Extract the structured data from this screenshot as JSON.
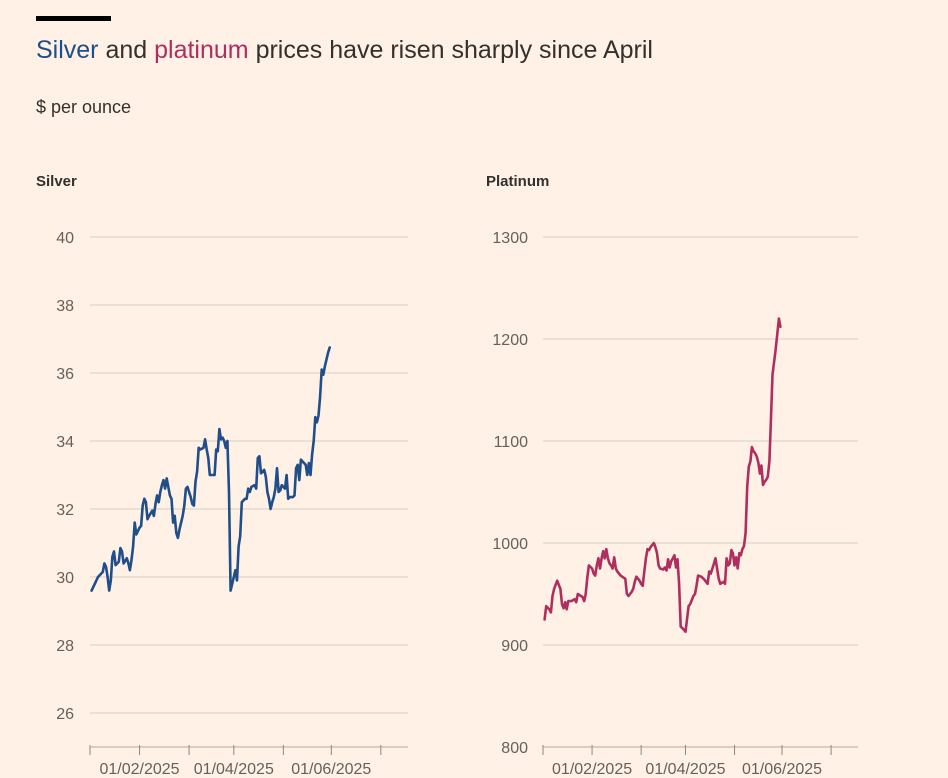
{
  "header": {
    "title_part1": "Silver",
    "title_part2": " and ",
    "title_part3": "platinum",
    "title_part4": " prices have risen sharply since April",
    "subtitle": "$ per ounce"
  },
  "colors": {
    "background": "#fff1e5",
    "silver": "#1f4e89",
    "platinum": "#b02e5e",
    "grid": "#d9cdc2",
    "text": "#33302e",
    "axis_text": "#66605c"
  },
  "chart_data": [
    {
      "type": "line",
      "title": "Silver",
      "series_color": "#1f4e89",
      "ylim": [
        25,
        41
      ],
      "yticks": [
        26,
        28,
        30,
        32,
        34,
        36,
        38,
        40
      ],
      "xlim": [
        "2024-12-01",
        "2025-06-18"
      ],
      "xticks": [
        "2024-12-01",
        "2025-01-01",
        "2025-02-01",
        "2025-03-01",
        "2025-04-01",
        "2025-05-01",
        "2025-06-01"
      ],
      "xtick_labels": [
        "",
        "01/02/2025",
        "",
        "01/04/2025",
        "",
        "01/06/2025",
        ""
      ],
      "grid": "horizontal",
      "points": [
        [
          "2024-12-02",
          29.6
        ],
        [
          "2024-12-04",
          29.8
        ],
        [
          "2024-12-06",
          30.0
        ],
        [
          "2024-12-08",
          30.1
        ],
        [
          "2024-12-09",
          30.15
        ],
        [
          "2024-12-10",
          30.4
        ],
        [
          "2024-12-11",
          30.3
        ],
        [
          "2024-12-12",
          30.0
        ],
        [
          "2024-12-13",
          29.6
        ],
        [
          "2024-12-14",
          29.9
        ],
        [
          "2024-12-15",
          30.6
        ],
        [
          "2024-12-16",
          30.75
        ],
        [
          "2024-12-17",
          30.35
        ],
        [
          "2024-12-19",
          30.45
        ],
        [
          "2024-12-20",
          30.85
        ],
        [
          "2024-12-21",
          30.75
        ],
        [
          "2024-12-22",
          30.4
        ],
        [
          "2024-12-24",
          30.55
        ],
        [
          "2024-12-25",
          30.4
        ],
        [
          "2024-12-26",
          30.2
        ],
        [
          "2024-12-27",
          30.5
        ],
        [
          "2024-12-28",
          30.9
        ],
        [
          "2024-12-29",
          31.6
        ],
        [
          "2024-12-30",
          31.25
        ],
        [
          "2025-01-01",
          31.45
        ],
        [
          "2025-01-02",
          31.5
        ],
        [
          "2025-01-03",
          32.1
        ],
        [
          "2025-01-04",
          32.3
        ],
        [
          "2025-01-05",
          32.2
        ],
        [
          "2025-01-06",
          31.7
        ],
        [
          "2025-01-07",
          31.8
        ],
        [
          "2025-01-09",
          31.95
        ],
        [
          "2025-01-10",
          31.8
        ],
        [
          "2025-01-11",
          32.15
        ],
        [
          "2025-01-12",
          32.4
        ],
        [
          "2025-01-13",
          32.2
        ],
        [
          "2025-01-14",
          32.5
        ],
        [
          "2025-01-15",
          32.7
        ],
        [
          "2025-01-16",
          32.85
        ],
        [
          "2025-01-17",
          32.6
        ],
        [
          "2025-01-18",
          32.9
        ],
        [
          "2025-01-19",
          32.65
        ],
        [
          "2025-01-20",
          32.4
        ],
        [
          "2025-01-21",
          32.3
        ],
        [
          "2025-01-22",
          31.6
        ],
        [
          "2025-01-23",
          31.8
        ],
        [
          "2025-01-24",
          31.3
        ],
        [
          "2025-01-25",
          31.15
        ],
        [
          "2025-01-26",
          31.4
        ],
        [
          "2025-01-27",
          31.6
        ],
        [
          "2025-01-28",
          31.8
        ],
        [
          "2025-01-29",
          32.1
        ],
        [
          "2025-01-30",
          32.6
        ],
        [
          "2025-01-31",
          32.65
        ],
        [
          "2025-02-01",
          32.5
        ],
        [
          "2025-02-02",
          32.35
        ],
        [
          "2025-02-03",
          32.15
        ],
        [
          "2025-02-04",
          32.1
        ],
        [
          "2025-02-05",
          32.8
        ],
        [
          "2025-02-06",
          33.1
        ],
        [
          "2025-02-07",
          33.8
        ],
        [
          "2025-02-08",
          33.75
        ],
        [
          "2025-02-10",
          33.8
        ],
        [
          "2025-02-11",
          34.05
        ],
        [
          "2025-02-12",
          33.75
        ],
        [
          "2025-02-13",
          33.5
        ],
        [
          "2025-02-14",
          33.0
        ],
        [
          "2025-02-15",
          33.0
        ],
        [
          "2025-02-16",
          33.0
        ],
        [
          "2025-02-17",
          33.0
        ],
        [
          "2025-02-18",
          33.75
        ],
        [
          "2025-02-19",
          33.7
        ],
        [
          "2025-02-20",
          34.35
        ],
        [
          "2025-02-21",
          34.05
        ],
        [
          "2025-02-22",
          34.1
        ],
        [
          "2025-02-23",
          34.0
        ],
        [
          "2025-02-24",
          33.8
        ],
        [
          "2025-02-25",
          34.0
        ],
        [
          "2025-02-26",
          32.5
        ],
        [
          "2025-02-27",
          29.6
        ],
        [
          "2025-02-28",
          29.8
        ],
        [
          "2025-03-01",
          30.0
        ],
        [
          "2025-03-02",
          30.2
        ],
        [
          "2025-03-03",
          29.9
        ],
        [
          "2025-03-04",
          30.9
        ],
        [
          "2025-03-05",
          31.2
        ],
        [
          "2025-03-06",
          32.2
        ],
        [
          "2025-03-08",
          32.3
        ],
        [
          "2025-03-09",
          32.3
        ],
        [
          "2025-03-10",
          32.6
        ],
        [
          "2025-03-11",
          32.5
        ],
        [
          "2025-03-12",
          32.65
        ],
        [
          "2025-03-14",
          32.7
        ],
        [
          "2025-03-15",
          32.6
        ],
        [
          "2025-03-16",
          33.5
        ],
        [
          "2025-03-17",
          33.55
        ],
        [
          "2025-03-18",
          33.05
        ],
        [
          "2025-03-20",
          33.15
        ],
        [
          "2025-03-21",
          32.95
        ],
        [
          "2025-03-22",
          32.5
        ],
        [
          "2025-03-23",
          32.3
        ],
        [
          "2025-03-24",
          32.0
        ],
        [
          "2025-03-25",
          32.2
        ],
        [
          "2025-03-26",
          32.35
        ],
        [
          "2025-03-27",
          32.6
        ],
        [
          "2025-03-28",
          33.2
        ],
        [
          "2025-03-29",
          32.5
        ],
        [
          "2025-03-30",
          32.55
        ],
        [
          "2025-03-31",
          32.7
        ],
        [
          "2025-04-01",
          32.65
        ],
        [
          "2025-04-02",
          32.6
        ],
        [
          "2025-04-03",
          33.0
        ],
        [
          "2025-04-04",
          32.3
        ],
        [
          "2025-04-05",
          32.35
        ],
        [
          "2025-04-06",
          32.35
        ],
        [
          "2025-04-07",
          32.35
        ],
        [
          "2025-04-08",
          32.4
        ],
        [
          "2025-04-09",
          33.2
        ],
        [
          "2025-04-10",
          33.3
        ],
        [
          "2025-04-11",
          32.85
        ],
        [
          "2025-04-12",
          33.45
        ],
        [
          "2025-04-13",
          33.4
        ],
        [
          "2025-04-14",
          33.35
        ],
        [
          "2025-04-15",
          33.3
        ],
        [
          "2025-04-16",
          33.0
        ],
        [
          "2025-04-17",
          33.35
        ],
        [
          "2025-04-18",
          33.0
        ],
        [
          "2025-04-19",
          33.6
        ],
        [
          "2025-04-20",
          34.0
        ],
        [
          "2025-04-21",
          34.7
        ],
        [
          "2025-04-22",
          34.55
        ],
        [
          "2025-04-23",
          34.75
        ],
        [
          "2025-04-24",
          35.3
        ],
        [
          "2025-04-25",
          36.1
        ],
        [
          "2025-04-26",
          35.95
        ],
        [
          "2025-04-27",
          36.2
        ],
        [
          "2025-04-28",
          36.4
        ],
        [
          "2025-04-29",
          36.6
        ],
        [
          "2025-04-30",
          36.75
        ]
      ]
    },
    {
      "type": "line",
      "title": "Platinum",
      "series_color": "#b02e5e",
      "ylim": [
        800,
        1300
      ],
      "yticks": [
        800,
        900,
        1000,
        1100,
        1200,
        1300
      ],
      "xlim": [
        "2024-12-01",
        "2025-06-18"
      ],
      "xticks": [
        "2024-12-01",
        "2025-01-01",
        "2025-02-01",
        "2025-03-01",
        "2025-04-01",
        "2025-05-01",
        "2025-06-01"
      ],
      "xtick_labels": [
        "",
        "01/02/2025",
        "",
        "01/04/2025",
        "",
        "01/06/2025",
        ""
      ],
      "grid": "horizontal",
      "points": [
        [
          "2024-12-02",
          925
        ],
        [
          "2024-12-03",
          938
        ],
        [
          "2024-12-05",
          935
        ],
        [
          "2024-12-06",
          932
        ],
        [
          "2024-12-07",
          948
        ],
        [
          "2024-12-08",
          955
        ],
        [
          "2024-12-10",
          963
        ],
        [
          "2024-12-12",
          955
        ],
        [
          "2024-12-13",
          940
        ],
        [
          "2024-12-14",
          936
        ],
        [
          "2024-12-15",
          942
        ],
        [
          "2024-12-16",
          935
        ],
        [
          "2024-12-17",
          943
        ],
        [
          "2024-12-19",
          943
        ],
        [
          "2024-12-21",
          945
        ],
        [
          "2024-12-22",
          942
        ],
        [
          "2024-12-23",
          950
        ],
        [
          "2024-12-25",
          948
        ],
        [
          "2024-12-26",
          947
        ],
        [
          "2024-12-27",
          943
        ],
        [
          "2024-12-28",
          950
        ],
        [
          "2024-12-29",
          966
        ],
        [
          "2024-12-30",
          978
        ],
        [
          "2025-01-01",
          975
        ],
        [
          "2025-01-02",
          970
        ],
        [
          "2025-01-03",
          968
        ],
        [
          "2025-01-04",
          978
        ],
        [
          "2025-01-05",
          985
        ],
        [
          "2025-01-06",
          975
        ],
        [
          "2025-01-07",
          985
        ],
        [
          "2025-01-08",
          992
        ],
        [
          "2025-01-09",
          985
        ],
        [
          "2025-01-10",
          994
        ],
        [
          "2025-01-11",
          985
        ],
        [
          "2025-01-12",
          980
        ],
        [
          "2025-01-13",
          978
        ],
        [
          "2025-01-14",
          975
        ],
        [
          "2025-01-15",
          986
        ],
        [
          "2025-01-16",
          975
        ],
        [
          "2025-01-17",
          972
        ],
        [
          "2025-01-19",
          968
        ],
        [
          "2025-01-21",
          966
        ],
        [
          "2025-01-22",
          965
        ],
        [
          "2025-01-23",
          950
        ],
        [
          "2025-01-24",
          948
        ],
        [
          "2025-01-26",
          952
        ],
        [
          "2025-01-27",
          955
        ],
        [
          "2025-01-28",
          962
        ],
        [
          "2025-01-29",
          967
        ],
        [
          "2025-01-31",
          963
        ],
        [
          "2025-02-01",
          960
        ],
        [
          "2025-02-02",
          958
        ],
        [
          "2025-02-03",
          972
        ],
        [
          "2025-02-04",
          985
        ],
        [
          "2025-02-05",
          994
        ],
        [
          "2025-02-06",
          993
        ],
        [
          "2025-02-07",
          996
        ],
        [
          "2025-02-08",
          998
        ],
        [
          "2025-02-09",
          1000
        ],
        [
          "2025-02-10",
          996
        ],
        [
          "2025-02-11",
          990
        ],
        [
          "2025-02-12",
          978
        ],
        [
          "2025-02-13",
          975
        ],
        [
          "2025-02-15",
          974
        ],
        [
          "2025-02-16",
          976
        ],
        [
          "2025-02-17",
          973
        ],
        [
          "2025-02-18",
          984
        ],
        [
          "2025-02-19",
          976
        ],
        [
          "2025-02-20",
          982
        ],
        [
          "2025-02-21",
          985
        ],
        [
          "2025-02-22",
          988
        ],
        [
          "2025-02-23",
          976
        ],
        [
          "2025-02-24",
          984
        ],
        [
          "2025-02-25",
          960
        ],
        [
          "2025-02-26",
          918
        ],
        [
          "2025-02-28",
          915
        ],
        [
          "2025-03-01",
          913
        ],
        [
          "2025-03-02",
          925
        ],
        [
          "2025-03-03",
          938
        ],
        [
          "2025-03-04",
          940
        ],
        [
          "2025-03-05",
          944
        ],
        [
          "2025-03-06",
          948
        ],
        [
          "2025-03-07",
          950
        ],
        [
          "2025-03-08",
          958
        ],
        [
          "2025-03-09",
          968
        ],
        [
          "2025-03-11",
          967
        ],
        [
          "2025-03-13",
          964
        ],
        [
          "2025-03-14",
          962
        ],
        [
          "2025-03-15",
          960
        ],
        [
          "2025-03-16",
          972
        ],
        [
          "2025-03-17",
          970
        ],
        [
          "2025-03-18",
          975
        ],
        [
          "2025-03-19",
          980
        ],
        [
          "2025-03-20",
          985
        ],
        [
          "2025-03-21",
          975
        ],
        [
          "2025-03-22",
          965
        ],
        [
          "2025-03-23",
          960
        ],
        [
          "2025-03-25",
          962
        ],
        [
          "2025-03-26",
          960
        ],
        [
          "2025-03-27",
          985
        ],
        [
          "2025-03-28",
          978
        ],
        [
          "2025-03-29",
          980
        ],
        [
          "2025-03-30",
          993
        ],
        [
          "2025-03-31",
          990
        ],
        [
          "2025-04-01",
          978
        ],
        [
          "2025-04-02",
          986
        ],
        [
          "2025-04-03",
          975
        ],
        [
          "2025-04-04",
          990
        ],
        [
          "2025-04-05",
          988
        ],
        [
          "2025-04-06",
          994
        ],
        [
          "2025-04-07",
          997
        ],
        [
          "2025-04-08",
          1010
        ],
        [
          "2025-04-09",
          1055
        ],
        [
          "2025-04-10",
          1075
        ],
        [
          "2025-04-11",
          1080
        ],
        [
          "2025-04-12",
          1094
        ],
        [
          "2025-04-13",
          1090
        ],
        [
          "2025-04-14",
          1088
        ],
        [
          "2025-04-15",
          1085
        ],
        [
          "2025-04-16",
          1079
        ],
        [
          "2025-04-17",
          1068
        ],
        [
          "2025-04-18",
          1076
        ],
        [
          "2025-04-19",
          1057
        ],
        [
          "2025-04-20",
          1060
        ],
        [
          "2025-04-21",
          1062
        ],
        [
          "2025-04-22",
          1065
        ],
        [
          "2025-04-23",
          1080
        ],
        [
          "2025-04-24",
          1120
        ],
        [
          "2025-04-25",
          1165
        ],
        [
          "2025-04-27",
          1190
        ],
        [
          "2025-04-28",
          1205
        ],
        [
          "2025-04-29",
          1220
        ],
        [
          "2025-04-30",
          1212
        ]
      ]
    }
  ]
}
